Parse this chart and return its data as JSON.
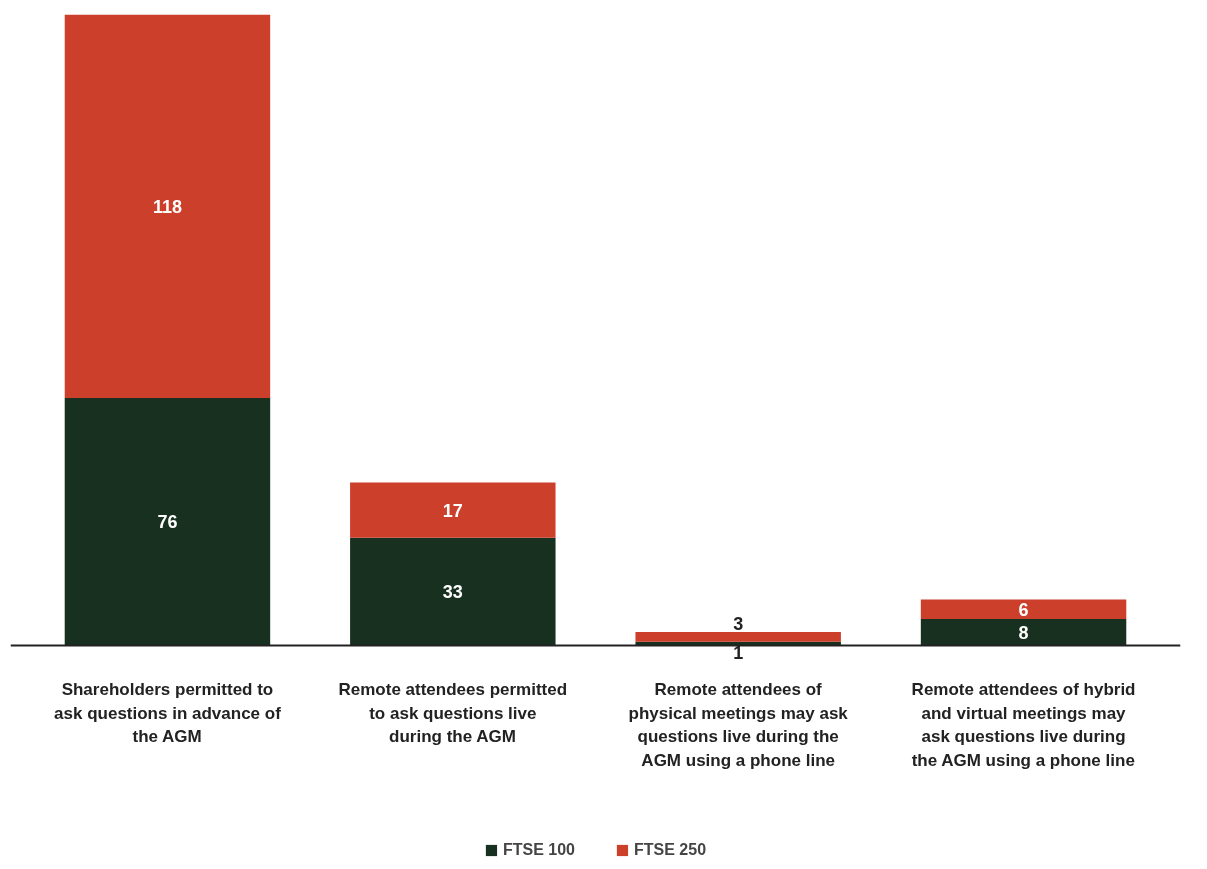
{
  "chart_data": {
    "type": "bar",
    "stacked": true,
    "data_labels": true,
    "legend": "bottom",
    "grid": false,
    "categories": [
      "Shareholders permitted to ask questions in advance of the AGM",
      "Remote attendees permitted to ask questions live during the AGM",
      "Remote attendees of physical meetings may ask questions live during the AGM using a phone line",
      "Remote attendees of hybrid and virtual meetings may ask questions live during the AGM using a phone line"
    ],
    "series": [
      {
        "name": "FTSE 100",
        "color": "#18301f",
        "values": [
          76,
          33,
          1,
          8
        ]
      },
      {
        "name": "FTSE 250",
        "color": "#cc3f2b",
        "values": [
          118,
          17,
          3,
          6
        ]
      }
    ]
  }
}
